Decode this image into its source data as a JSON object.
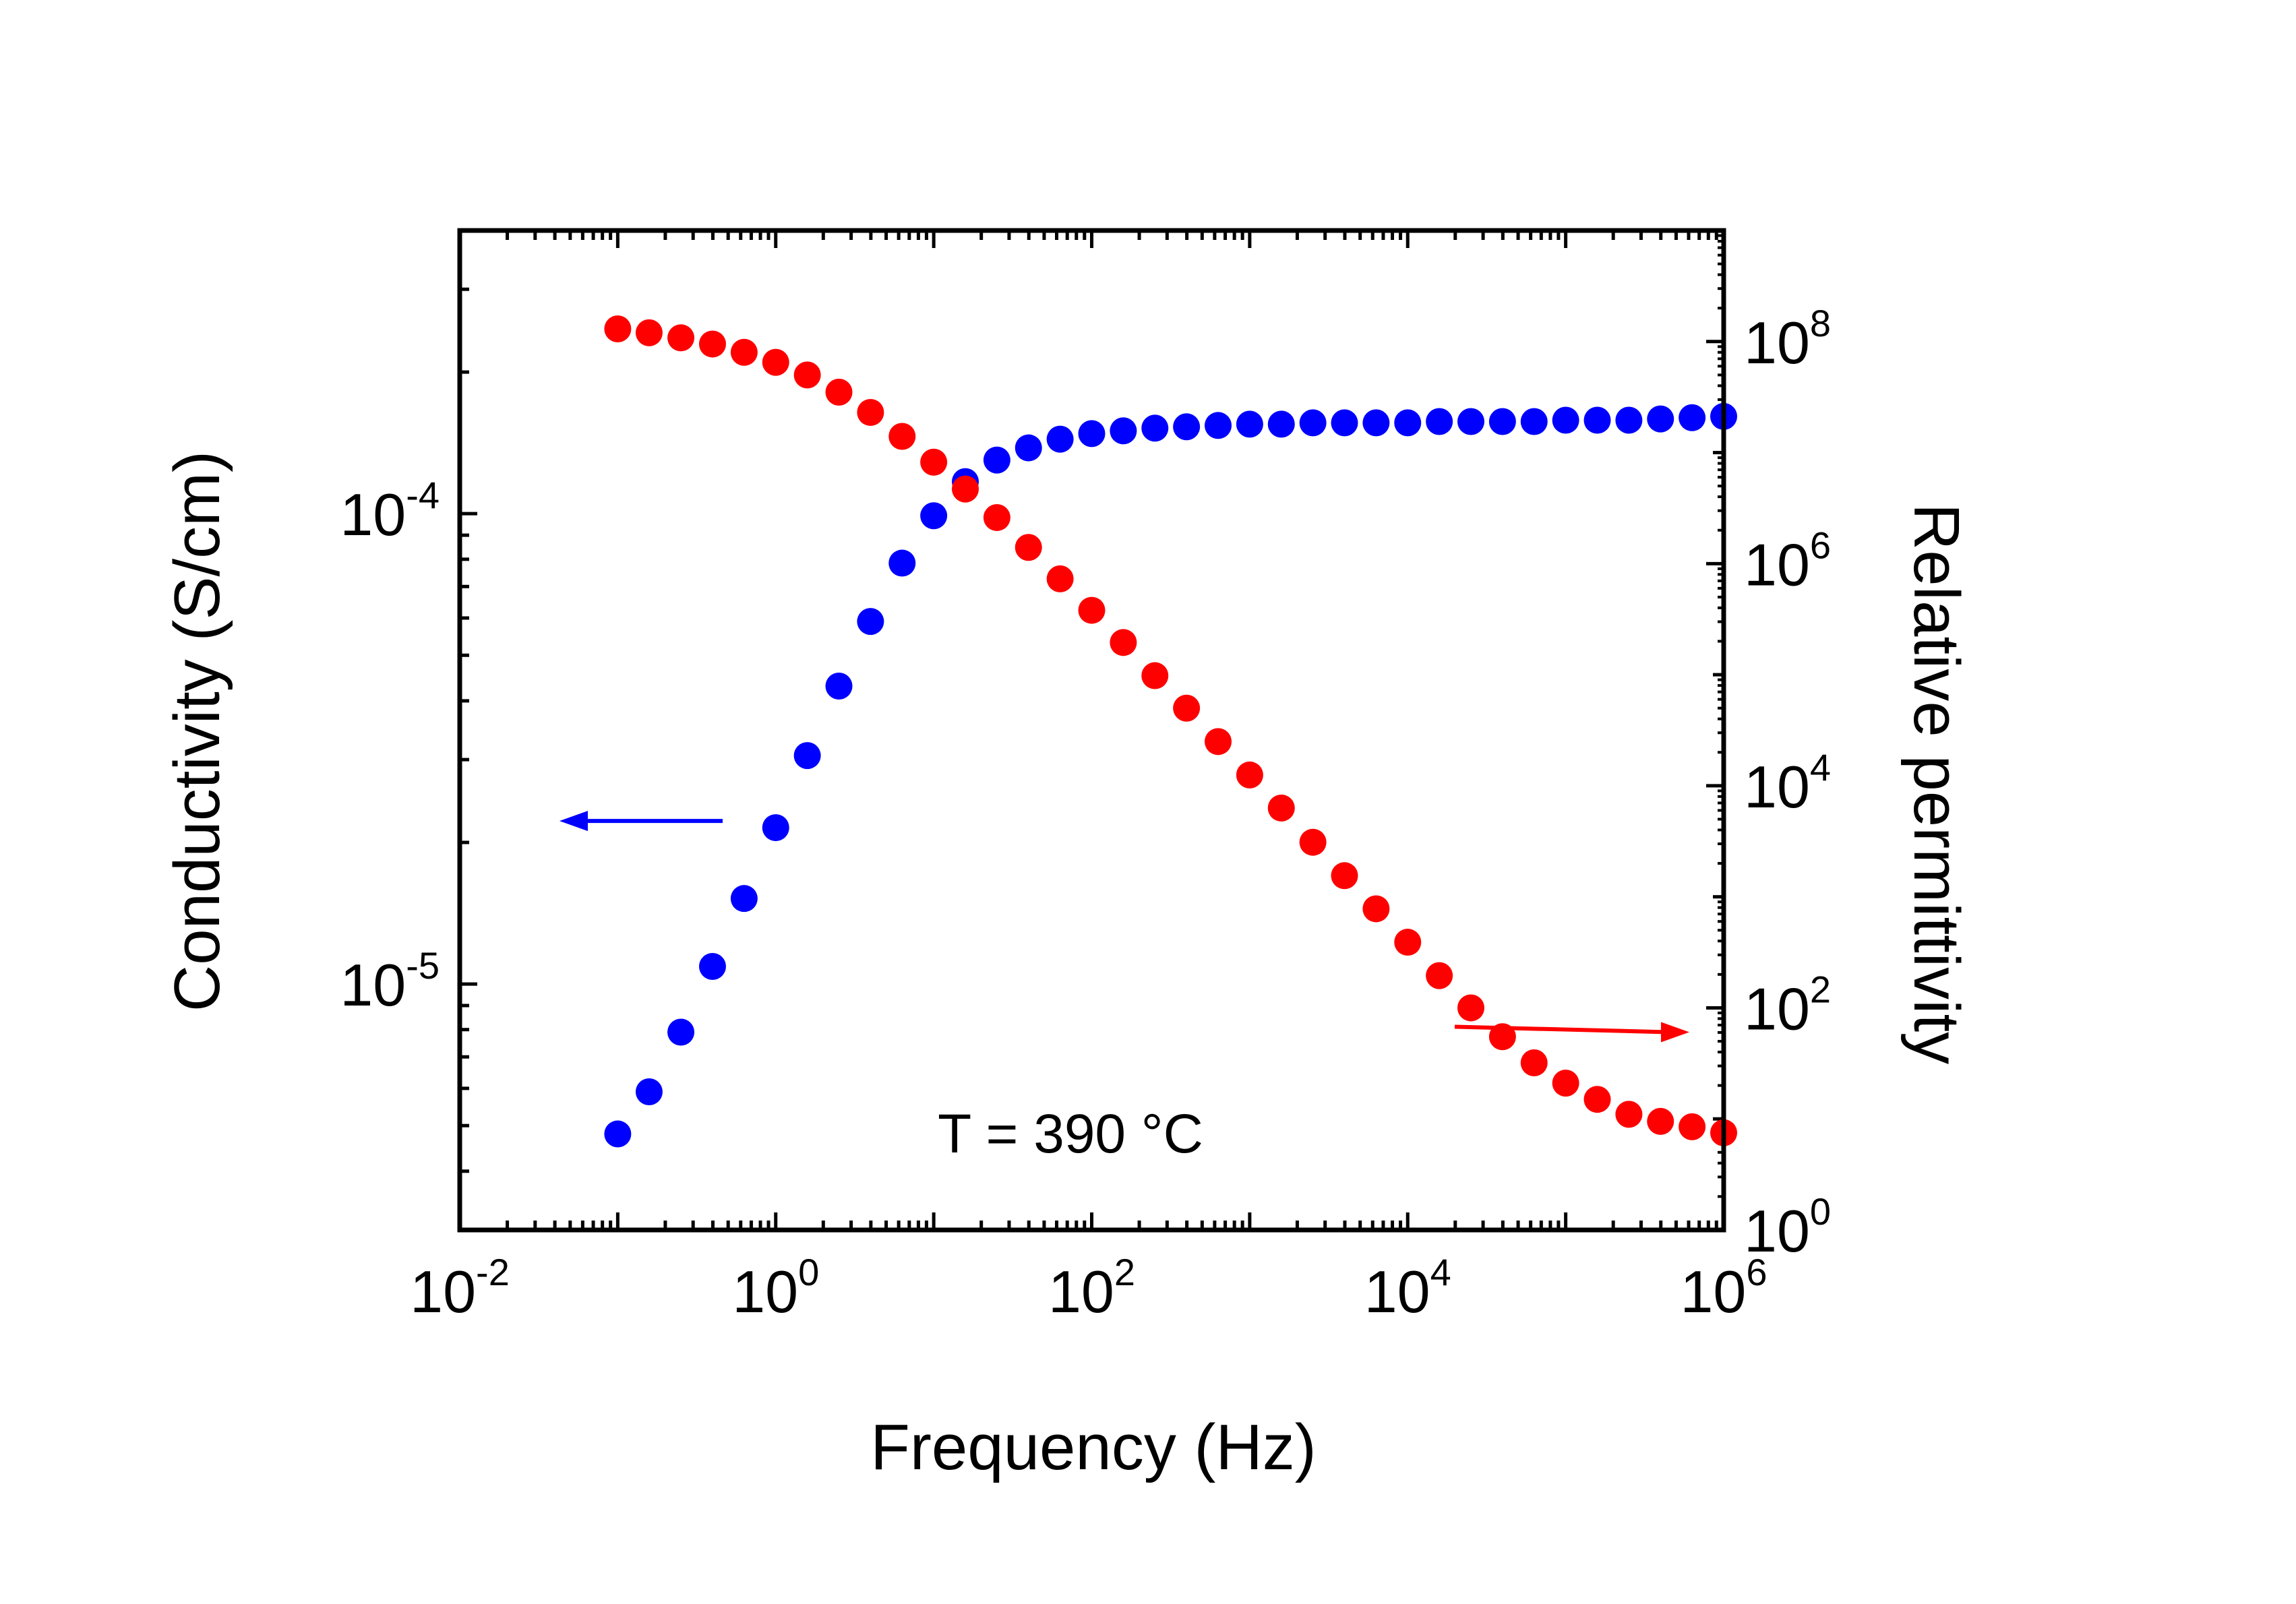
{
  "chart_data": {
    "type": "scatter",
    "annotation": "T = 390 °C",
    "xlabel": "Frequency (Hz)",
    "ylabel_left": "Conductivity (S/cm)",
    "ylabel_right": "Relative permittivity",
    "x_scale": "log",
    "y_left_scale": "log",
    "y_right_scale": "log",
    "xlim": [
      0.01,
      1000000
    ],
    "ylim_left": [
      3e-06,
      0.0004
    ],
    "ylim_right": [
      1,
      1000000000
    ],
    "x_ticks": [
      {
        "base": "10",
        "exp": "-2"
      },
      {
        "base": "10",
        "exp": "0"
      },
      {
        "base": "10",
        "exp": "2"
      },
      {
        "base": "10",
        "exp": "4"
      },
      {
        "base": "10",
        "exp": "6"
      }
    ],
    "y_left_ticks": [
      {
        "base": "10",
        "exp": "-5"
      },
      {
        "base": "10",
        "exp": "-4"
      }
    ],
    "y_right_ticks": [
      {
        "base": "10",
        "exp": "0"
      },
      {
        "base": "10",
        "exp": "2"
      },
      {
        "base": "10",
        "exp": "4"
      },
      {
        "base": "10",
        "exp": "6"
      },
      {
        "base": "10",
        "exp": "8"
      }
    ],
    "series": [
      {
        "name": "Conductivity",
        "axis": "left",
        "color": "#0000ff",
        "x": [
          0.1,
          0.158,
          0.251,
          0.398,
          0.631,
          1.0,
          1.585,
          2.512,
          3.981,
          6.31,
          10,
          15.85,
          25.12,
          39.81,
          63.1,
          100,
          158.5,
          251.2,
          398.1,
          631,
          1000,
          1585,
          2512,
          3981,
          6310,
          10000,
          15850,
          25120,
          39810,
          63100,
          100000,
          158500,
          251200,
          398100,
          631000,
          1000000
        ],
        "values": [
          4.8e-06,
          5.9e-06,
          7.9e-06,
          1.09e-05,
          1.52e-05,
          2.15e-05,
          3.06e-05,
          4.3e-05,
          5.9e-05,
          7.85e-05,
          9.9e-05,
          0.000117,
          0.00013,
          0.000138,
          0.000144,
          0.000148,
          0.00015,
          0.000152,
          0.000153,
          0.000154,
          0.000155,
          0.000155,
          0.000156,
          0.000156,
          0.000156,
          0.000156,
          0.000157,
          0.000157,
          0.000157,
          0.000157,
          0.000158,
          0.000158,
          0.000158,
          0.000159,
          0.00016,
          0.000161
        ]
      },
      {
        "name": "Relative permittivity",
        "axis": "right",
        "color": "#ff0000",
        "x": [
          0.1,
          0.158,
          0.251,
          0.398,
          0.631,
          1.0,
          1.585,
          2.512,
          3.981,
          6.31,
          10,
          15.85,
          25.12,
          39.81,
          63.1,
          100,
          158.5,
          251.2,
          398.1,
          631,
          1000,
          1585,
          2512,
          3981,
          6310,
          10000,
          15850,
          25120,
          39810,
          63100,
          100000,
          158500,
          251200,
          398100,
          631000,
          1000000
        ],
        "values": [
          130000000,
          120000000,
          108000000,
          95000000,
          80000000,
          65000000,
          50000000,
          35000000,
          23000000,
          14000000,
          8200000,
          4700000,
          2600000,
          1400000,
          730000,
          380000,
          195000,
          98000,
          50000,
          25000,
          12500,
          6300,
          3100,
          1550,
          780,
          390,
          195,
          100,
          55,
          32,
          21,
          15,
          11,
          9.5,
          8.5,
          7.5
        ]
      }
    ],
    "arrows": [
      {
        "points_to": "left axis",
        "color": "#0000ff"
      },
      {
        "points_to": "right axis",
        "color": "#ff0000"
      }
    ]
  }
}
